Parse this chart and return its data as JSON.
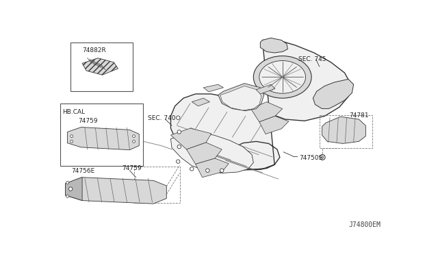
{
  "bg_color": "#ffffff",
  "diagram_id": "J74800EM",
  "text_color": "#222222",
  "line_color": "#333333",
  "light_line": "#666666",
  "dashed_color": "#777777",
  "fill_light": "#f0f0f0",
  "fill_mid": "#d8d8d8",
  "fill_dark": "#b8b8b8",
  "labels": {
    "sec740": "SEC. 740",
    "sec745": "SEC. 745",
    "p74882R": "74882R",
    "p74759_box": "74759",
    "p74759_lower": "74759",
    "p74756E": "74756E",
    "p74781": "74781",
    "p74750S": "74750S",
    "hb_cal": "HB.CAL"
  },
  "fs_label": 6.5,
  "fs_id": 7
}
